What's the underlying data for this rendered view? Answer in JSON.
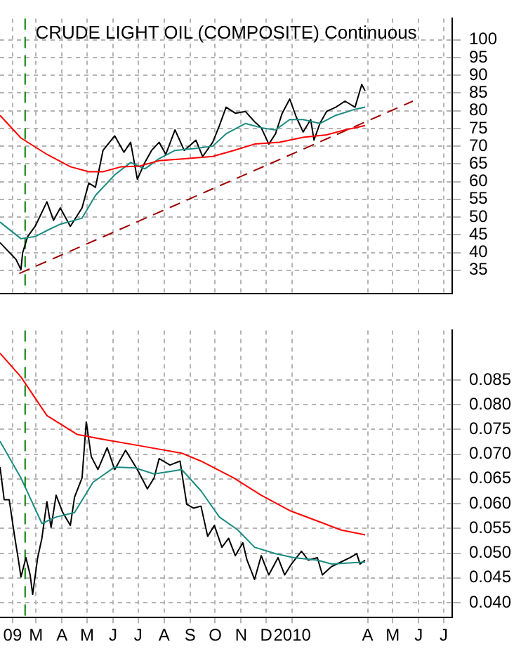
{
  "chart_data": [
    {
      "type": "line",
      "title": "CRUDE LIGHT OIL (COMPOSITE) Continuous",
      "xlim": [
        "2009-01-31",
        "2010-07-25"
      ],
      "ylim": [
        28.5,
        106
      ],
      "yticks": [
        35,
        40,
        45,
        50,
        55,
        60,
        65,
        70,
        75,
        80,
        85,
        90,
        95,
        100
      ],
      "grid": true,
      "legend": false,
      "tick_labels": "y",
      "xticks": [
        {
          "value": "2009-02-15",
          "label": null
        },
        {
          "value": "2009-03-15",
          "label": null
        },
        {
          "value": "2009-04-15",
          "label": null
        },
        {
          "value": "2009-05-15",
          "label": null
        },
        {
          "value": "2009-06-15",
          "label": null
        },
        {
          "value": "2009-07-15",
          "label": null
        },
        {
          "value": "2009-08-15",
          "label": null
        },
        {
          "value": "2009-09-15",
          "label": null
        },
        {
          "value": "2009-10-15",
          "label": null
        },
        {
          "value": "2009-11-15",
          "label": null
        },
        {
          "value": "2009-12-15",
          "label": null
        },
        {
          "value": "2010-01-15",
          "label": null
        },
        {
          "value": "2010-04-15",
          "label": null
        },
        {
          "value": "2010-05-15",
          "label": null
        },
        {
          "value": "2010-06-15",
          "label": null
        },
        {
          "value": "2010-07-15",
          "label": null
        }
      ],
      "ref_lines": [
        {
          "axis": "x",
          "value": "2009-03-02",
          "color": "#008000",
          "line_style": "dashed"
        }
      ],
      "series": [
        {
          "color": "#ff0000",
          "x": [
            "2009-01-31",
            "2009-02-25",
            "2009-03-28",
            "2009-04-25",
            "2009-05-17",
            "2009-06-03",
            "2009-06-25",
            "2009-07-17",
            "2009-08-09",
            "2009-09-11",
            "2009-10-12",
            "2009-11-06",
            "2009-12-01",
            "2009-12-31",
            "2010-01-28",
            "2010-02-25",
            "2010-03-19",
            "2010-04-12"
          ],
          "values": [
            78.7,
            72.3,
            67.7,
            64.2,
            62.8,
            62.8,
            64.2,
            64.4,
            65.9,
            66.5,
            67.1,
            68.8,
            70.6,
            71.1,
            72.5,
            73.2,
            74.6,
            75.8
          ]
        },
        {
          "color": "#1a8c82",
          "x": [
            "2009-01-31",
            "2009-02-25",
            "2009-03-14",
            "2009-03-28",
            "2009-04-13",
            "2009-04-30",
            "2009-05-09",
            "2009-05-25",
            "2009-06-17",
            "2009-07-06",
            "2009-07-23",
            "2009-08-09",
            "2009-08-28",
            "2009-09-22",
            "2009-10-12",
            "2009-10-28",
            "2009-11-20",
            "2009-12-09",
            "2009-12-26",
            "2010-01-12",
            "2010-01-28",
            "2010-02-17",
            "2010-03-08",
            "2010-03-31",
            "2010-04-12"
          ],
          "values": [
            48.6,
            43.9,
            44.5,
            46.2,
            48.0,
            49.1,
            49.7,
            56.1,
            61.9,
            65.4,
            63.6,
            66.5,
            68.8,
            69.4,
            70.0,
            73.5,
            76.4,
            75.2,
            74.6,
            77.5,
            77.5,
            76.4,
            78.7,
            80.4,
            81.0
          ]
        },
        {
          "color": "#000000",
          "x": [
            "2009-01-31",
            "2009-02-19",
            "2009-02-25",
            "2009-02-27",
            "2009-03-05",
            "2009-03-14",
            "2009-03-28",
            "2009-04-05",
            "2009-04-13",
            "2009-04-25",
            "2009-05-09",
            "2009-05-17",
            "2009-05-25",
            "2009-06-03",
            "2009-06-17",
            "2009-06-28",
            "2009-07-06",
            "2009-07-14",
            "2009-07-23",
            "2009-07-31",
            "2009-08-09",
            "2009-08-17",
            "2009-08-28",
            "2009-09-08",
            "2009-09-22",
            "2009-09-30",
            "2009-10-12",
            "2009-10-20",
            "2009-10-28",
            "2009-11-08",
            "2009-11-20",
            "2009-12-01",
            "2009-12-09",
            "2009-12-18",
            "2009-12-26",
            "2010-01-03",
            "2010-01-12",
            "2010-01-20",
            "2010-01-28",
            "2010-02-06",
            "2010-02-10",
            "2010-02-17",
            "2010-02-25",
            "2010-03-08",
            "2010-03-19",
            "2010-03-31",
            "2010-04-08",
            "2010-04-12"
          ],
          "values": [
            42.8,
            38.1,
            35.2,
            39.9,
            44.5,
            47.4,
            54.3,
            49.1,
            52.6,
            47.4,
            52.6,
            59.6,
            58.4,
            68.8,
            72.9,
            68.3,
            71.1,
            60.7,
            65.4,
            68.8,
            71.1,
            67.7,
            74.6,
            68.8,
            71.7,
            67.1,
            71.1,
            75.8,
            81.0,
            79.3,
            79.8,
            76.9,
            75.2,
            70.6,
            73.5,
            79.3,
            83.3,
            78.1,
            74.0,
            77.5,
            71.7,
            76.4,
            79.8,
            81.0,
            82.7,
            81.0,
            87.4,
            85.6
          ]
        },
        {
          "type": "line",
          "color": "#a00000",
          "line_style": "dashed",
          "x": [
            "2009-02-23",
            "2010-06-08"
          ],
          "values": [
            34.1,
            82.7
          ]
        }
      ]
    },
    {
      "type": "line",
      "xlim": [
        "2009-01-31",
        "2010-07-25"
      ],
      "ylim": [
        0.037,
        0.095
      ],
      "grid": true,
      "legend": false,
      "yticks": [
        {
          "value": 0.04,
          "label": "0.040"
        },
        0.045,
        {
          "value": 0.05,
          "label": "0.050"
        },
        0.055,
        {
          "value": 0.06,
          "label": "0.060"
        },
        0.065,
        {
          "value": 0.07,
          "label": "0.070"
        },
        0.075,
        {
          "value": 0.08,
          "label": "0.080"
        },
        0.085
      ],
      "xticks": [
        {
          "value": "2009-02-15",
          "label": "09"
        },
        {
          "value": "2009-03-15",
          "label": "M"
        },
        {
          "value": "2009-04-15",
          "label": "A"
        },
        {
          "value": "2009-05-15",
          "label": "M"
        },
        {
          "value": "2009-06-15",
          "label": "J"
        },
        {
          "value": "2009-07-15",
          "label": "J"
        },
        {
          "value": "2009-08-15",
          "label": "A"
        },
        {
          "value": "2009-09-15",
          "label": "S"
        },
        {
          "value": "2009-10-15",
          "label": "O"
        },
        {
          "value": "2009-11-15",
          "label": "N"
        },
        {
          "value": "2009-12-15",
          "label": "D"
        },
        {
          "value": "2010-01-15",
          "label": "2010"
        },
        {
          "value": "2010-04-15",
          "label": "A"
        },
        {
          "value": "2010-05-15",
          "label": "M"
        },
        {
          "value": "2010-06-15",
          "label": "J"
        },
        {
          "value": "2010-07-15",
          "label": "J"
        }
      ],
      "ref_lines": [
        {
          "axis": "x",
          "value": "2009-03-02",
          "color": "#008000",
          "line_style": "dashed"
        }
      ],
      "series": [
        {
          "color": "#ff0000",
          "x": [
            "2009-01-31",
            "2009-02-25",
            "2009-03-28",
            "2009-05-03",
            "2009-06-03",
            "2009-07-17",
            "2009-09-05",
            "2009-09-28",
            "2009-11-06",
            "2009-12-09",
            "2010-01-12",
            "2010-02-14",
            "2010-03-14",
            "2010-04-12"
          ],
          "values": [
            0.0904,
            0.0856,
            0.0778,
            0.074,
            0.073,
            0.0717,
            0.0702,
            0.0686,
            0.0652,
            0.0617,
            0.0586,
            0.0565,
            0.0547,
            0.0537
          ]
        },
        {
          "color": "#1a8c82",
          "x": [
            "2009-01-31",
            "2009-02-25",
            "2009-03-22",
            "2009-04-08",
            "2009-04-30",
            "2009-05-22",
            "2009-06-17",
            "2009-07-12",
            "2009-08-03",
            "2009-08-22",
            "2009-09-05",
            "2009-09-28",
            "2009-10-20",
            "2009-11-11",
            "2009-12-01",
            "2009-12-26",
            "2010-01-17",
            "2010-02-14",
            "2010-03-03",
            "2010-04-12"
          ],
          "values": [
            0.0726,
            0.0652,
            0.056,
            0.0573,
            0.0582,
            0.0643,
            0.0674,
            0.0672,
            0.066,
            0.0665,
            0.0669,
            0.0626,
            0.0573,
            0.0547,
            0.0512,
            0.0499,
            0.0491,
            0.0486,
            0.0478,
            0.0482
          ]
        },
        {
          "color": "#000000",
          "x": [
            "2009-01-31",
            "2009-02-05",
            "2009-02-11",
            "2009-02-17",
            "2009-02-22",
            "2009-02-25",
            "2009-03-03",
            "2009-03-08",
            "2009-03-11",
            "2009-03-17",
            "2009-03-22",
            "2009-03-28",
            "2009-04-02",
            "2009-04-08",
            "2009-04-16",
            "2009-04-25",
            "2009-04-30",
            "2009-05-09",
            "2009-05-14",
            "2009-05-20",
            "2009-05-28",
            "2009-06-08",
            "2009-06-17",
            "2009-06-30",
            "2009-07-14",
            "2009-07-26",
            "2009-08-03",
            "2009-08-09",
            "2009-08-22",
            "2009-09-03",
            "2009-09-11",
            "2009-09-19",
            "2009-09-28",
            "2009-10-06",
            "2009-10-14",
            "2009-10-23",
            "2009-10-31",
            "2009-11-08",
            "2009-11-17",
            "2009-11-22",
            "2009-12-01",
            "2009-12-09",
            "2009-12-18",
            "2009-12-29",
            "2010-01-06",
            "2010-01-14",
            "2010-01-26",
            "2010-02-03",
            "2010-02-14",
            "2010-02-20",
            "2010-03-03",
            "2010-03-14",
            "2010-03-25",
            "2010-04-02",
            "2010-04-06",
            "2010-04-12"
          ],
          "values": [
            0.0674,
            0.0608,
            0.0608,
            0.0539,
            0.0486,
            0.0452,
            0.0491,
            0.0456,
            0.0417,
            0.0491,
            0.053,
            0.0604,
            0.0552,
            0.0617,
            0.0582,
            0.0556,
            0.0613,
            0.0652,
            0.0765,
            0.0695,
            0.0669,
            0.0713,
            0.0669,
            0.0708,
            0.0669,
            0.063,
            0.0652,
            0.0691,
            0.0678,
            0.0686,
            0.0599,
            0.0591,
            0.0595,
            0.0534,
            0.0556,
            0.0512,
            0.053,
            0.0495,
            0.0521,
            0.0486,
            0.0447,
            0.0495,
            0.0456,
            0.0491,
            0.0456,
            0.0478,
            0.0504,
            0.0486,
            0.0491,
            0.0456,
            0.0473,
            0.0482,
            0.0491,
            0.0499,
            0.0478,
            0.0486
          ]
        }
      ]
    }
  ]
}
